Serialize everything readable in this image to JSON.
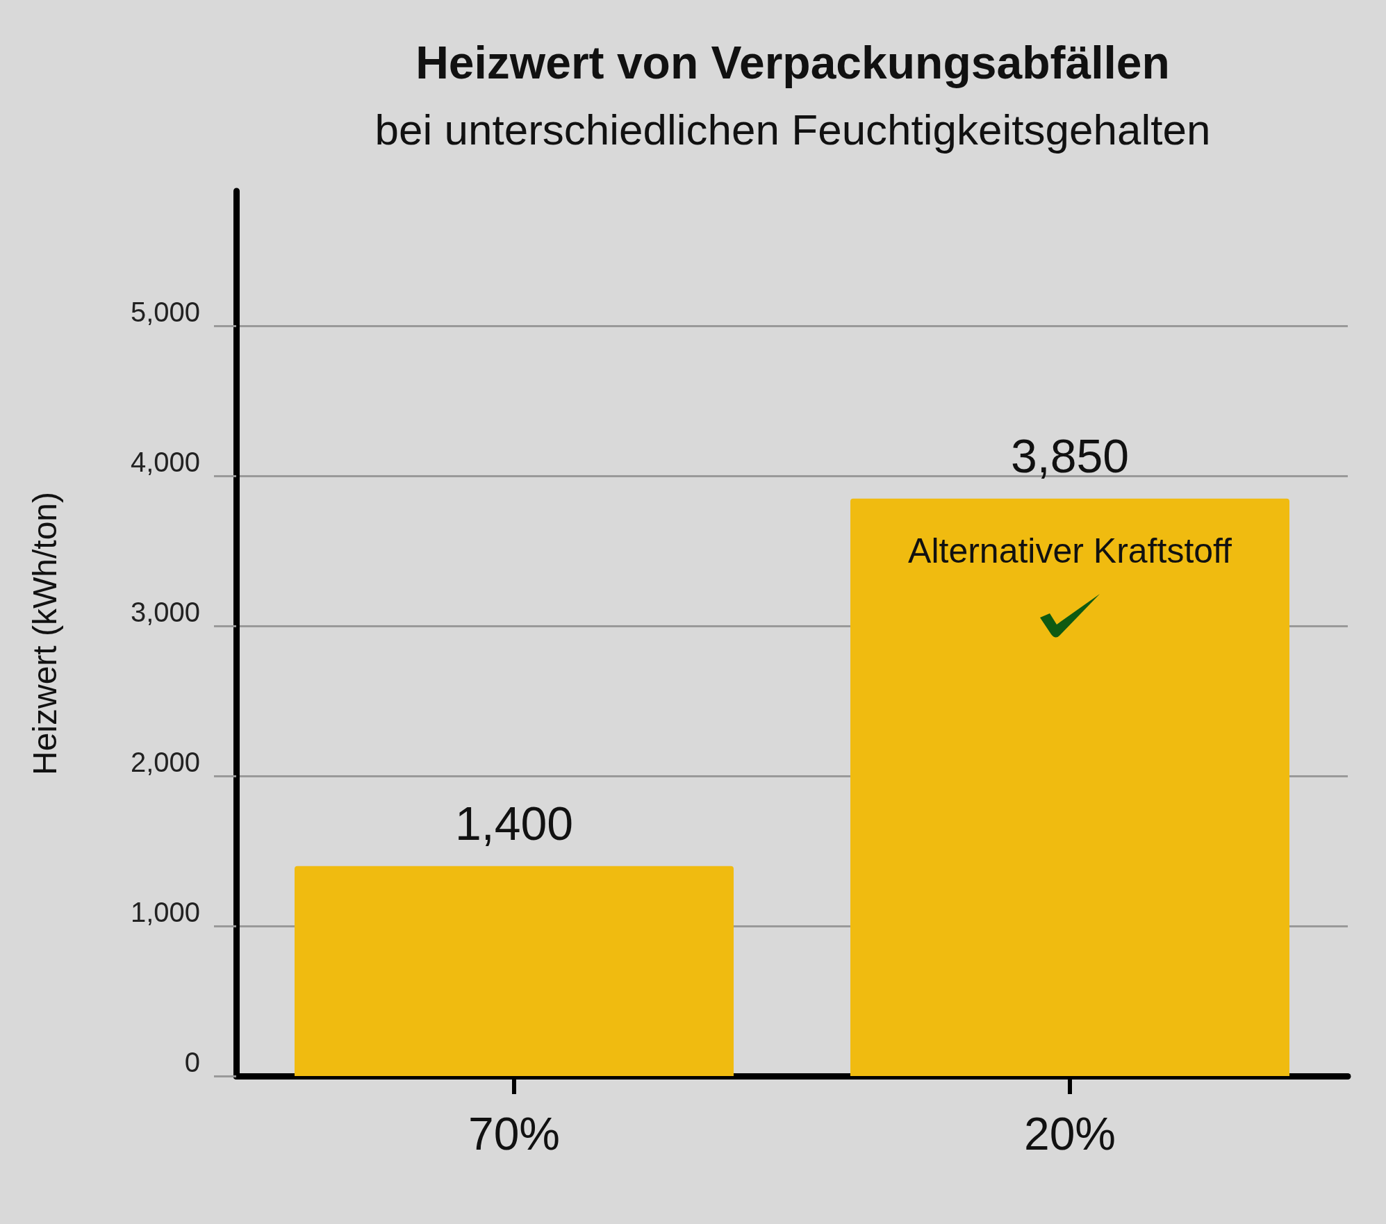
{
  "chart_data": {
    "type": "bar",
    "title": "Heizwert von Verpackungsabfällen",
    "subtitle": "bei unterschiedlichen Feuchtigkeitsgehalten",
    "ylabel": "Heizwert (kWh/ton)",
    "categories": [
      "70%",
      "20%"
    ],
    "values": [
      1400,
      3850
    ],
    "color": "#f0bb10",
    "ylim": [
      0,
      5900
    ],
    "yticks": [
      {
        "value": 0,
        "label": "0"
      },
      {
        "value": 1000,
        "label": "1,000"
      },
      {
        "value": 2000,
        "label": "2,000"
      },
      {
        "value": 3000,
        "label": "3,000"
      },
      {
        "value": 4000,
        "label": "4,000"
      },
      {
        "value": 5000,
        "label": "5,000"
      }
    ],
    "value_labels": [
      "1,400",
      "3,850"
    ],
    "annotations": [
      "Alternativer Kraftstoff"
    ],
    "grid": "y"
  }
}
